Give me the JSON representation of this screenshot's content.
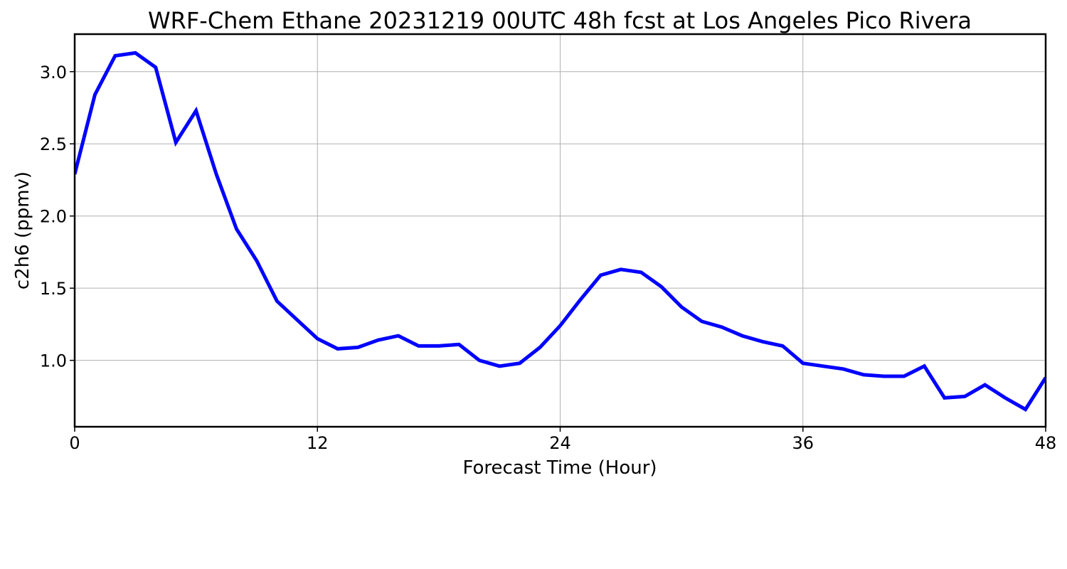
{
  "chart_data": {
    "type": "line",
    "title": "WRF-Chem Ethane  20231219 00UTC 48h fcst at Los Angeles Pico Rivera",
    "xlabel": "Forecast Time (Hour)",
    "ylabel": "c2h6  (ppmv)",
    "xlim": [
      0,
      48
    ],
    "ylim": [
      0.54,
      3.26
    ],
    "xticks": [
      0,
      12,
      24,
      36,
      48
    ],
    "xtick_labels": [
      "0",
      "12",
      "24",
      "36",
      "48"
    ],
    "yticks": [
      1.0,
      1.5,
      2.0,
      2.5,
      3.0
    ],
    "ytick_labels": [
      "1.0",
      "1.5",
      "2.0",
      "2.5",
      "3.0"
    ],
    "grid": true,
    "series": [
      {
        "color": "#0000ff",
        "x": [
          0,
          1,
          2,
          3,
          4,
          5,
          6,
          7,
          8,
          9,
          10,
          11,
          12,
          13,
          14,
          15,
          16,
          17,
          18,
          19,
          20,
          21,
          22,
          23,
          24,
          25,
          26,
          27,
          28,
          29,
          30,
          31,
          32,
          33,
          34,
          35,
          36,
          37,
          38,
          39,
          40,
          41,
          42,
          43,
          44,
          45,
          46,
          47,
          48
        ],
        "values": [
          2.29,
          2.84,
          3.11,
          3.13,
          3.03,
          2.51,
          2.73,
          2.29,
          1.91,
          1.69,
          1.41,
          1.28,
          1.15,
          1.08,
          1.09,
          1.14,
          1.17,
          1.1,
          1.1,
          1.11,
          1.0,
          0.96,
          0.98,
          1.09,
          1.24,
          1.42,
          1.59,
          1.63,
          1.61,
          1.51,
          1.37,
          1.27,
          1.23,
          1.17,
          1.13,
          1.1,
          0.98,
          0.96,
          0.94,
          0.9,
          0.89,
          0.89,
          0.96,
          0.74,
          0.75,
          0.83,
          0.74,
          0.66,
          0.88
        ]
      }
    ]
  }
}
